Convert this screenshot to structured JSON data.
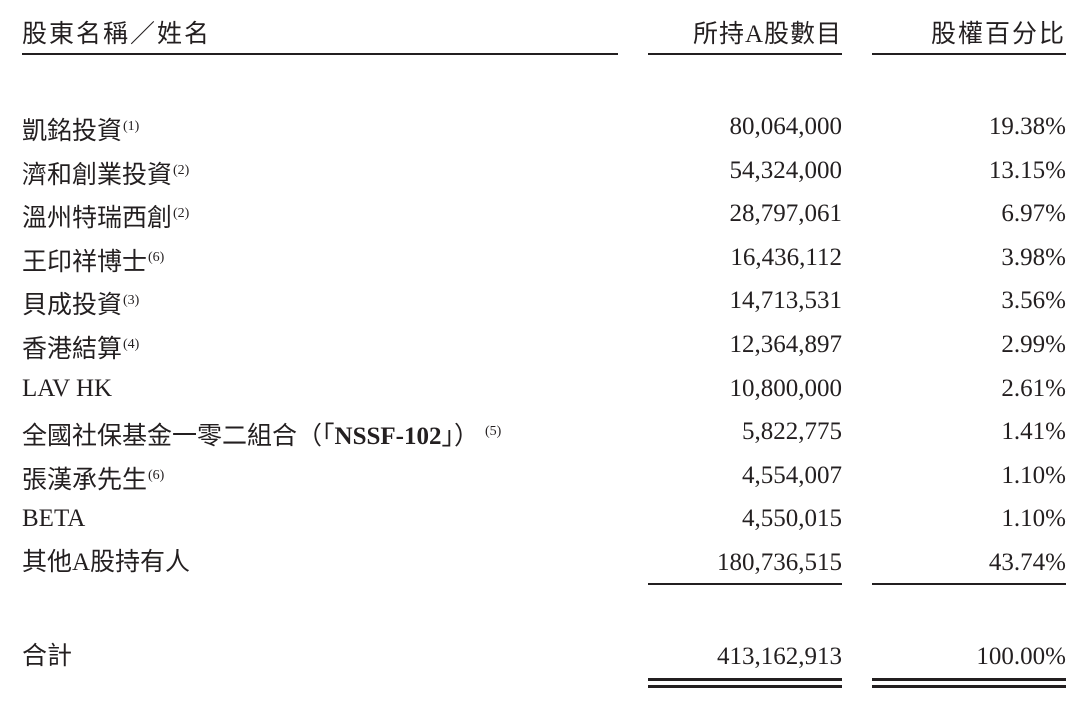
{
  "header": {
    "name": "股東名稱／姓名",
    "shares": "所持A股數目",
    "percent": "股權百分比"
  },
  "rows": [
    {
      "name": "凱銘投資",
      "note": "(1)",
      "shares": "80,064,000",
      "percent": "19.38%"
    },
    {
      "name": "濟和創業投資",
      "note": "(2)",
      "shares": "54,324,000",
      "percent": "13.15%"
    },
    {
      "name": "溫州特瑞西創",
      "note": "(2)",
      "shares": "28,797,061",
      "percent": "6.97%"
    },
    {
      "name": "王印祥博士",
      "note": "(6)",
      "shares": "16,436,112",
      "percent": "3.98%"
    },
    {
      "name": "貝成投資",
      "note": "(3)",
      "shares": "14,713,531",
      "percent": "3.56%"
    },
    {
      "name": "香港結算",
      "note": "(4)",
      "shares": "12,364,897",
      "percent": "2.99%"
    },
    {
      "name": "LAV HK",
      "note": "",
      "shares": "10,800,000",
      "percent": "2.61%"
    },
    {
      "name": "全國社保基金一零二組合（「",
      "bold": "NSSF-102",
      "name_end": "」）",
      "note": "(5)",
      "shares": "5,822,775",
      "percent": "1.41%"
    },
    {
      "name": "張漢承先生",
      "note": "(6)",
      "shares": "4,554,007",
      "percent": "1.10%"
    },
    {
      "name": "BETA",
      "note": "",
      "shares": "4,550,015",
      "percent": "1.10%"
    },
    {
      "name": "其他A股持有人",
      "note": "",
      "shares": "180,736,515",
      "percent": "43.74%"
    }
  ],
  "total": {
    "label": "合計",
    "shares": "413,162,913",
    "percent": "100.00%"
  }
}
